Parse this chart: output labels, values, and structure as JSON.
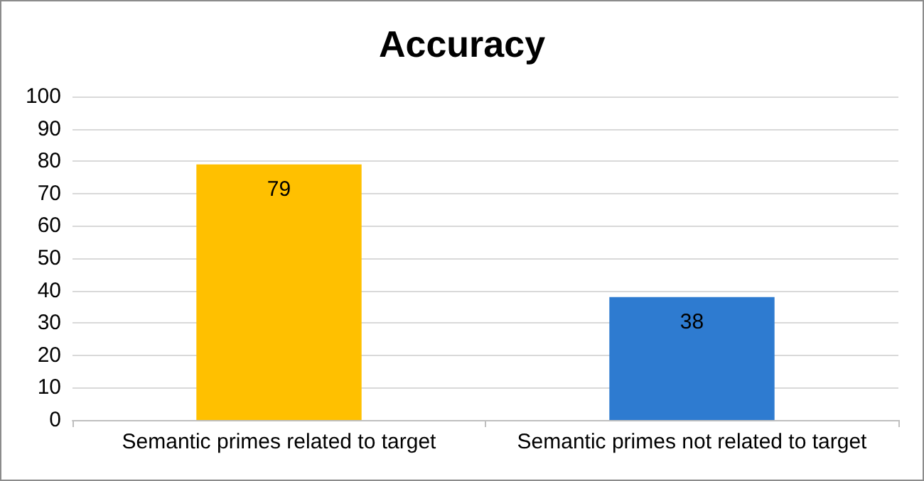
{
  "chart_data": {
    "type": "bar",
    "title": "Accuracy",
    "categories": [
      "Semantic primes related to target",
      "Semantic primes not related to target"
    ],
    "values": [
      79,
      38
    ],
    "colors": [
      "#ffc000",
      "#2e7bd0"
    ],
    "ylim": [
      0,
      100
    ],
    "yticks": [
      0,
      10,
      20,
      30,
      40,
      50,
      60,
      70,
      80,
      90,
      100
    ],
    "grid": "y",
    "data_labels": true
  }
}
